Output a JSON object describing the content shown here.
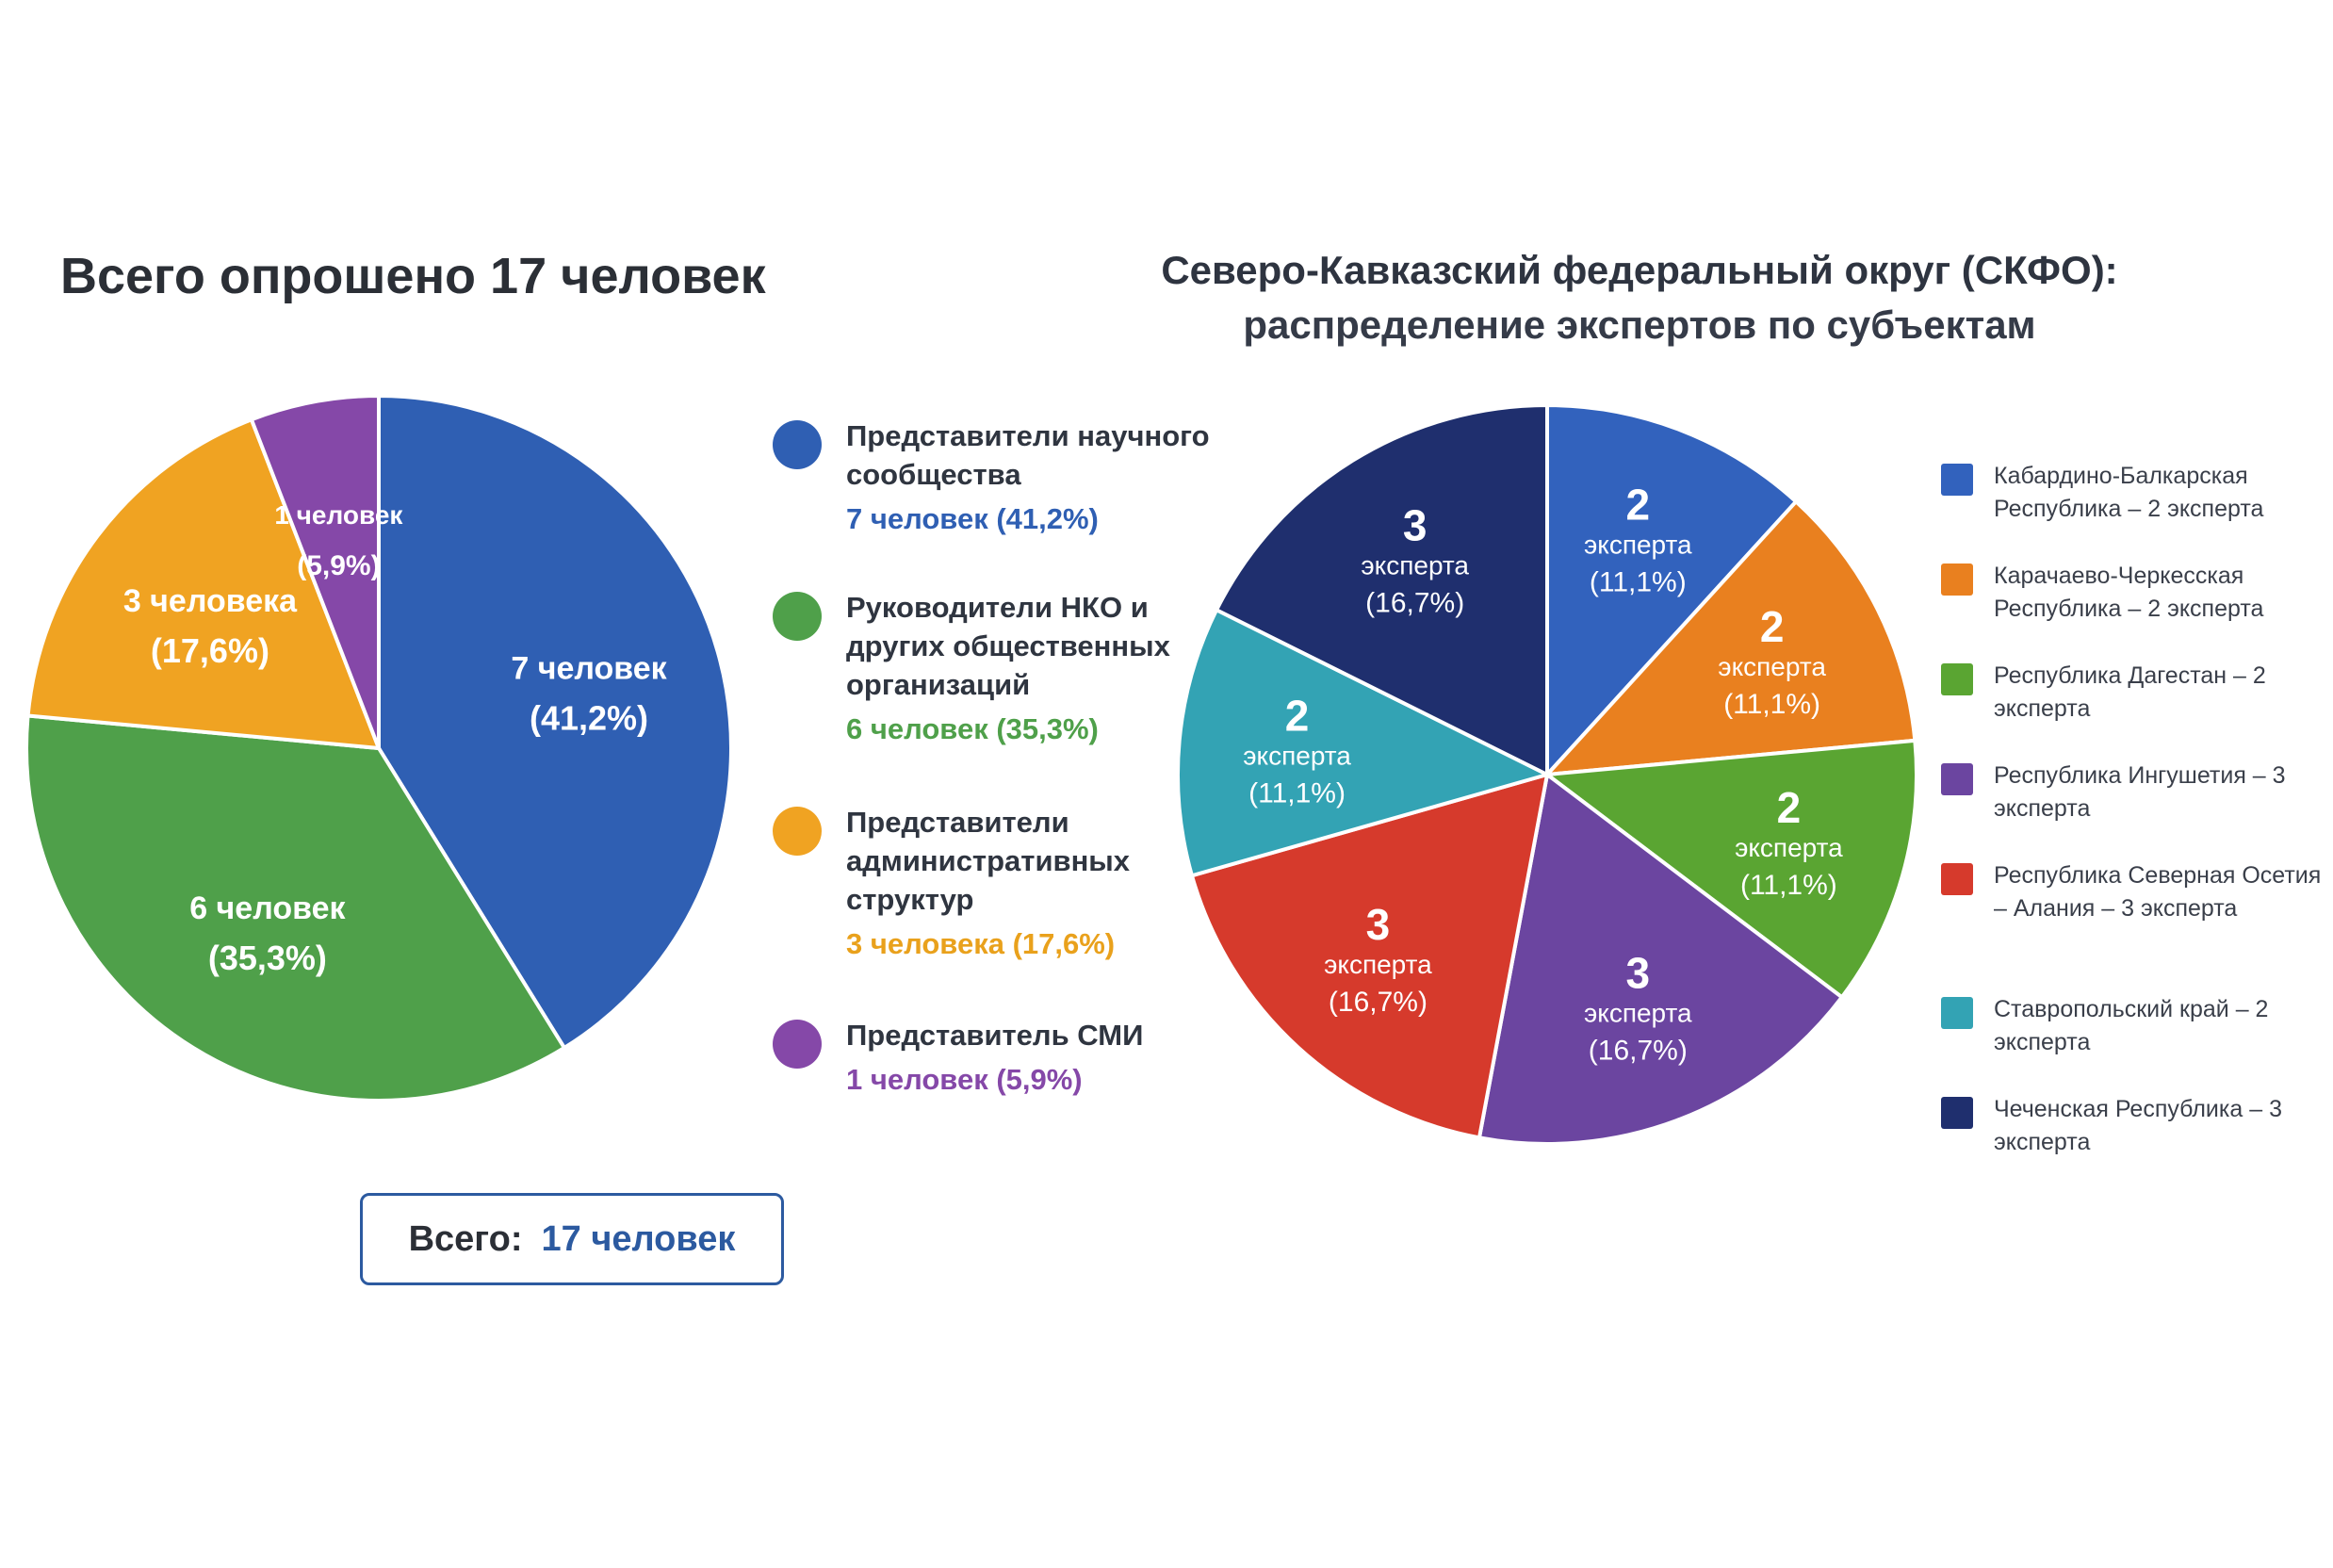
{
  "chart_data": [
    {
      "type": "pie",
      "title": "Всего опрошено 17 человек",
      "total_label": "Всего:",
      "total_value": "17 человек",
      "slices": [
        {
          "legend": "Представители научного сообщества",
          "legend_value": "7 человек (41,2%)",
          "label_count": "7 человек",
          "label_pct": "(41,2%)",
          "value": 7,
          "color": "#2f5fb3"
        },
        {
          "legend": "Руководители НКО и других общественных организаций",
          "legend_value": "6 человек (35,3%)",
          "label_count": "6 человек",
          "label_pct": "(35,3%)",
          "value": 6,
          "color": "#4fa04a"
        },
        {
          "legend": "Представители административных структур",
          "legend_value": "3 человека (17,6%)",
          "label_count": "3 человека",
          "label_pct": "(17,6%)",
          "value": 3,
          "color": "#f0a322"
        },
        {
          "legend": "Представитель СМИ",
          "legend_value": "1 человек (5,9%)",
          "label_count": "1 человек",
          "label_pct": "(5,9%)",
          "value": 1,
          "color": "#8548a8"
        }
      ]
    },
    {
      "type": "pie",
      "title": "Северо-Кавказский федеральный округ (СКФО):",
      "subtitle": "распределение экспертов по субъектам",
      "slices": [
        {
          "legend": "Кабардино-Балкарская Республика – 2 эксперта",
          "label_num": "2",
          "label_word": "эксперта",
          "label_pct": "(11,1%)",
          "value": 2,
          "color": "#3262bd"
        },
        {
          "legend": "Карачаево-Черкесская Республика – 2 эксперта",
          "label_num": "2",
          "label_word": "эксперта",
          "label_pct": "(11,1%)",
          "value": 2,
          "color": "#e9801f"
        },
        {
          "legend": "Республика Дагестан – 2 эксперта",
          "label_num": "2",
          "label_word": "эксперта",
          "label_pct": "(11,1%)",
          "value": 2,
          "color": "#5aa532"
        },
        {
          "legend": "Республика Ингушетия – 3 эксперта",
          "label_num": "3",
          "label_word": "эксперта",
          "label_pct": "(16,7%)",
          "value": 3,
          "color": "#6b45a0"
        },
        {
          "legend": "Республика Северная Осетия – Алания – 3 эксперта",
          "label_num": "3",
          "label_word": "эксперта",
          "label_pct": "(16,7%)",
          "value": 3,
          "color": "#d63a2c"
        },
        {
          "legend": "Ставропольский край – 2 эксперта",
          "label_num": "2",
          "label_word": "эксперта",
          "label_pct": "(11,1%)",
          "value": 2,
          "color": "#33a3b4"
        },
        {
          "legend": "Чеченская Республика – 3 эксперта",
          "label_num": "3",
          "label_word": "эксперта",
          "label_pct": "(16,7%)",
          "value": 3,
          "color": "#1f2f6e"
        }
      ]
    }
  ]
}
